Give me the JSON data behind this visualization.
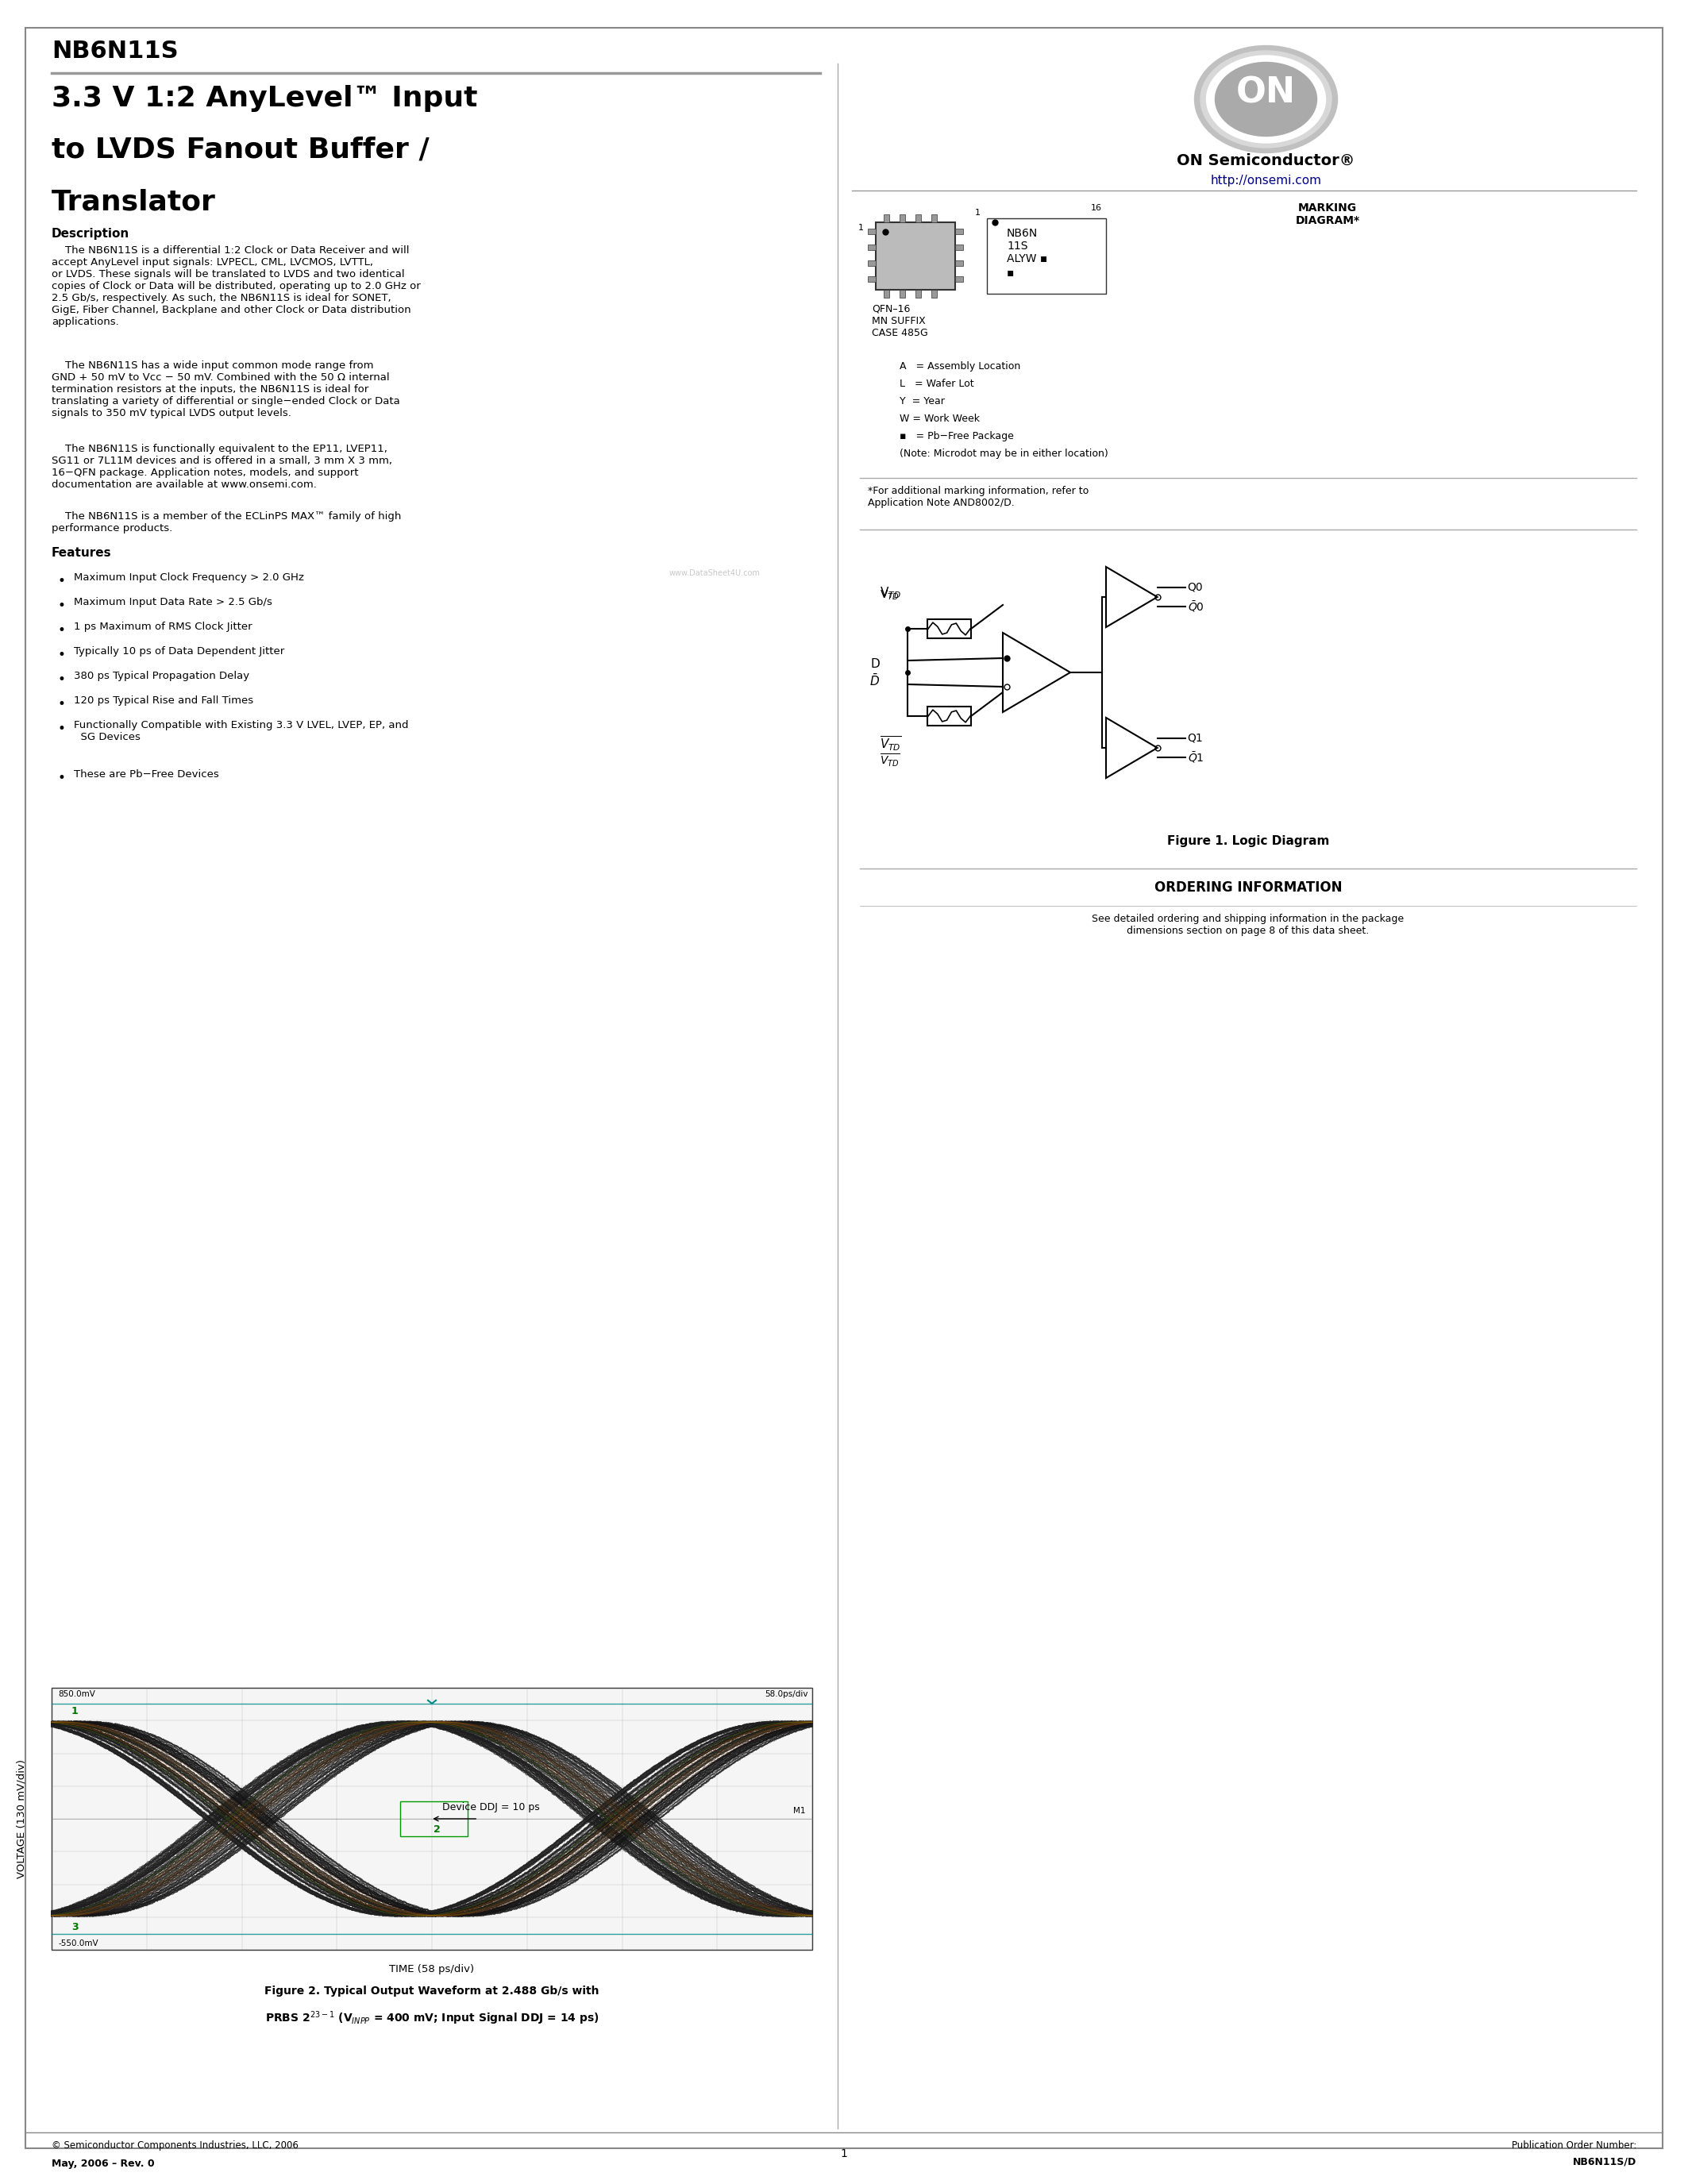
{
  "page_title": "NB6N11S",
  "product_title_line1": "3.3 V 1:2 AnyLevel™ Input",
  "product_title_line2": "to LVDS Fanout Buffer /",
  "product_title_line3": "Translator",
  "company": "ON Semiconductor®",
  "website": "http://onsemi.com",
  "bg_color": "#ffffff",
  "description_bold": "Description",
  "desc1": "    The NB6N11S is a differential 1:2 Clock or Data Receiver and will\naccept AnyLevel input signals: LVPECL, CML, LVCMOS, LVTTL,\nor LVDS. These signals will be translated to LVDS and two identical\ncopies of Clock or Data will be distributed, operating up to 2.0 GHz or\n2.5 Gb/s, respectively. As such, the NB6N11S is ideal for SONET,\nGigE, Fiber Channel, Backplane and other Clock or Data distribution\napplications.",
  "desc2": "    The NB6N11S has a wide input common mode range from\nGND + 50 mV to Vᴄᴄ − 50 mV. Combined with the 50 Ω internal\ntermination resistors at the inputs, the NB6N11S is ideal for\ntranslating a variety of differential or single−ended Clock or Data\nsignals to 350 mV typical LVDS output levels.",
  "desc3": "    The NB6N11S is functionally equivalent to the EP11, LVEP11,\nSG11 or 7L11M devices and is offered in a small, 3 mm X 3 mm,\n16−QFN package. Application notes, models, and support\ndocumentation are available at www.onsemi.com.",
  "desc4": "    The NB6N11S is a member of the ECLinPS MAX™ family of high\nperformance products.",
  "features_title": "Features",
  "features": [
    "Maximum Input Clock Frequency > 2.0 GHz",
    "Maximum Input Data Rate > 2.5 Gb/s",
    "1 ps Maximum of RMS Clock Jitter",
    "Typically 10 ps of Data Dependent Jitter",
    "380 ps Typical Propagation Delay",
    "120 ps Typical Rise and Fall Times",
    "Functionally Compatible with Existing 3.3 V LVEL, LVEP, EP, and\n  SG Devices",
    "These are Pb−Free Devices"
  ],
  "marking_title": "MARKING\nDIAGRAM*",
  "qfn_label": "QFN–16\nMN SUFFIX\nCASE 485G",
  "marking_content": "NB6N\n11S\nALYW ▪\n▪",
  "legend_lines": [
    "A   = Assembly Location",
    "L   = Wafer Lot",
    "Y  = Year",
    "W = Work Week",
    "▪   = Pb−Free Package",
    "(Note: Microdot may be in either location)"
  ],
  "marking_footnote": "*For additional marking information, refer to\nApplication Note AND8002/D.",
  "ordering_title": "ORDERING INFORMATION",
  "ordering_text": "See detailed ordering and shipping information in the package\ndimensions section on page 8 of this data sheet.",
  "figure1_title": "Figure 1. Logic Diagram",
  "figure2_line1": "Figure 2. Typical Output Waveform at 2.488 Gb/s with",
  "figure2_line2": "PRBS 2$^{23-1}$ (V$_{INPP}$ = 400 mV; Input Signal DDJ = 14 ps)",
  "waveform_ylabel": "VOLTAGE (130 mV/div)",
  "waveform_xlabel": "TIME (58 ps/div)",
  "waveform_ymax_label": "850.0mV",
  "waveform_ymin_label": "-550.0mV",
  "waveform_xmax_label": "58.0ps/div",
  "waveform_M1": "M1",
  "waveform_ddj": "Device DDJ = 10 ps",
  "watermark": "www.DataSheet4U.com",
  "footer_copy": "© Semiconductor Components Industries, LLC, 2006",
  "footer_date": "May, 2006 – Rev. 0",
  "footer_page": "1",
  "footer_pub": "Publication Order Number:",
  "footer_pn": "NB6N11S/D"
}
